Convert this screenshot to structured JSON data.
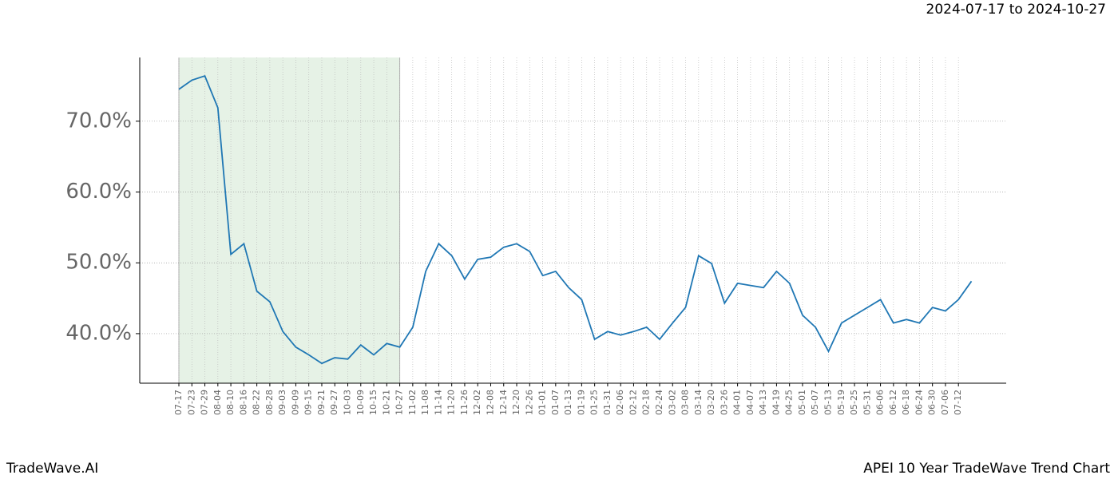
{
  "chart_data": {
    "type": "line",
    "title": "2024-07-17 to 2024-10-27",
    "footer_left": "TradeWave.AI",
    "footer_right": "APEI 10 Year TradeWave Trend Chart",
    "categories": [
      "07-17",
      "07-23",
      "07-29",
      "08-04",
      "08-10",
      "08-16",
      "08-22",
      "08-28",
      "09-03",
      "09-09",
      "09-15",
      "09-21",
      "09-27",
      "10-03",
      "10-09",
      "10-15",
      "10-21",
      "10-27",
      "11-02",
      "11-08",
      "11-14",
      "11-20",
      "11-26",
      "12-02",
      "12-08",
      "12-14",
      "12-20",
      "12-26",
      "01-01",
      "01-07",
      "01-13",
      "01-19",
      "01-25",
      "01-31",
      "02-06",
      "02-12",
      "02-18",
      "02-24",
      "03-02",
      "03-08",
      "03-14",
      "03-20",
      "03-26",
      "04-01",
      "04-07",
      "04-13",
      "04-19",
      "04-25",
      "05-01",
      "05-07",
      "05-13",
      "05-19",
      "05-25",
      "05-31",
      "06-06",
      "06-12",
      "06-18",
      "06-24",
      "06-30",
      "07-06",
      "07-12",
      null
    ],
    "series": [
      {
        "color": "#1f77b4",
        "values": [
          74.5,
          75.8,
          76.4,
          71.9,
          51.2,
          52.7,
          46.0,
          44.5,
          40.3,
          38.1,
          37.0,
          35.8,
          36.6,
          36.4,
          38.4,
          37.0,
          38.6,
          38.1,
          40.9,
          48.8,
          52.7,
          51.0,
          47.7,
          50.5,
          50.8,
          52.2,
          52.7,
          51.6,
          48.2,
          48.8,
          46.5,
          44.8,
          39.2,
          40.3,
          39.8,
          40.3,
          40.9,
          39.2,
          41.5,
          43.7,
          51.0,
          49.9,
          44.3,
          47.1,
          46.8,
          46.5,
          48.8,
          47.1,
          42.6,
          40.9,
          37.5,
          41.5,
          42.6,
          43.7,
          44.8,
          41.5,
          42.0,
          41.5,
          43.7,
          43.2,
          44.8,
          47.4
        ]
      }
    ],
    "shade": [
      "07-17",
      "10-27"
    ],
    "shade_color": "#e6f2e6",
    "ylim": [
      33,
      79
    ],
    "yticks": [
      {
        "value": 40,
        "label": "40.0%"
      },
      {
        "value": 50,
        "label": "50.0%"
      },
      {
        "value": 60,
        "label": "60.0%"
      },
      {
        "value": 70,
        "label": "70.0%"
      }
    ],
    "grid": true
  }
}
